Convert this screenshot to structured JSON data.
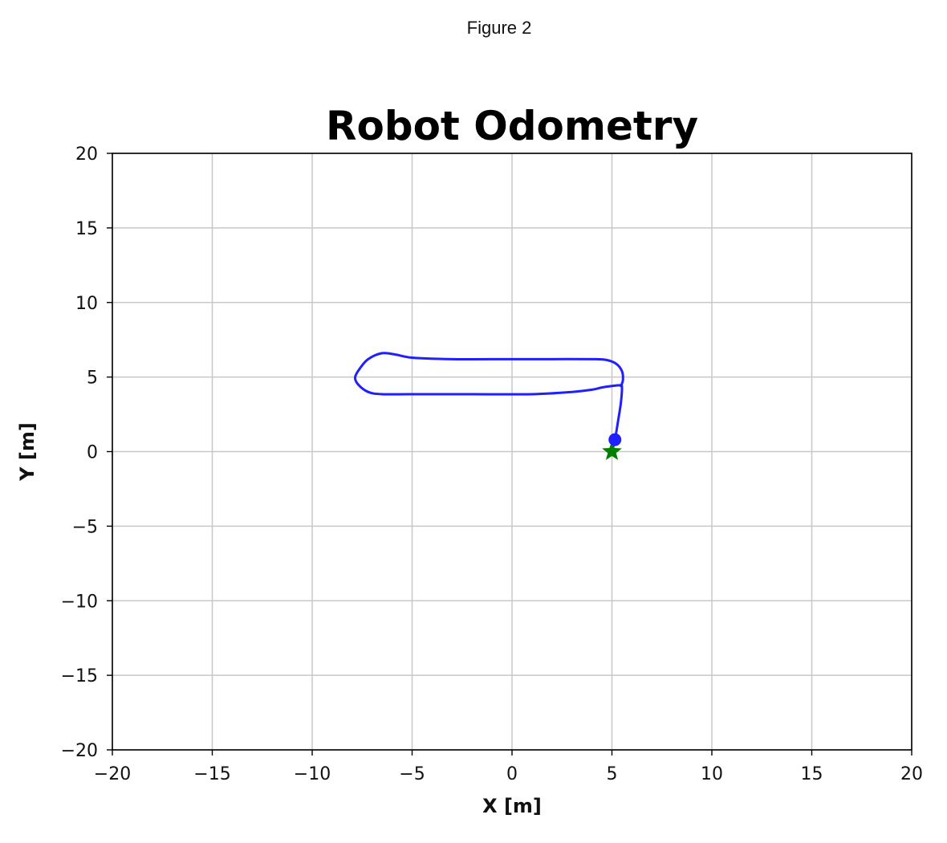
{
  "window": {
    "title": "Figure 2"
  },
  "chart_data": {
    "type": "line",
    "title": "Robot Odometry",
    "xlabel": "X [m]",
    "ylabel": "Y [m]",
    "xlim": [
      -20,
      20
    ],
    "ylim": [
      -20,
      20
    ],
    "xticks": [
      -20,
      -15,
      -10,
      -5,
      0,
      5,
      10,
      15,
      20
    ],
    "yticks": [
      -20,
      -15,
      -10,
      -5,
      0,
      5,
      10,
      15,
      20
    ],
    "xtick_labels": [
      "−20",
      "−15",
      "−10",
      "−5",
      "0",
      "5",
      "10",
      "15",
      "20"
    ],
    "ytick_labels": [
      "−20",
      "−15",
      "−10",
      "−5",
      "0",
      "5",
      "10",
      "15",
      "20"
    ],
    "grid": true,
    "colors": {
      "trajectory": "#1f1fff",
      "start_marker": "#008000",
      "current_marker": "#1f1fff",
      "grid": "#c8c8c8"
    },
    "series": [
      {
        "values": [
          [
            5.0,
            0.0
          ],
          [
            5.15,
            0.8
          ],
          [
            5.3,
            2.0
          ],
          [
            5.45,
            3.3
          ],
          [
            5.5,
            4.35
          ],
          [
            5.4,
            4.45
          ],
          [
            5.0,
            4.4
          ],
          [
            4.5,
            4.3
          ],
          [
            4.0,
            4.15
          ],
          [
            3.0,
            4.0
          ],
          [
            1.0,
            3.85
          ],
          [
            -2.0,
            3.85
          ],
          [
            -5.0,
            3.85
          ],
          [
            -6.5,
            3.85
          ],
          [
            -7.2,
            4.0
          ],
          [
            -7.7,
            4.5
          ],
          [
            -7.85,
            5.0
          ],
          [
            -7.6,
            5.6
          ],
          [
            -7.2,
            6.2
          ],
          [
            -6.5,
            6.6
          ],
          [
            -5.8,
            6.5
          ],
          [
            -5.0,
            6.3
          ],
          [
            -3.0,
            6.2
          ],
          [
            0.0,
            6.2
          ],
          [
            2.0,
            6.2
          ],
          [
            4.0,
            6.2
          ],
          [
            4.7,
            6.15
          ],
          [
            5.2,
            5.9
          ],
          [
            5.5,
            5.4
          ],
          [
            5.55,
            4.8
          ],
          [
            5.45,
            4.4
          ]
        ]
      }
    ],
    "markers": [
      {
        "type": "star",
        "x": 5.0,
        "y": 0.0
      },
      {
        "type": "circle",
        "x": 5.15,
        "y": 0.8
      }
    ]
  }
}
